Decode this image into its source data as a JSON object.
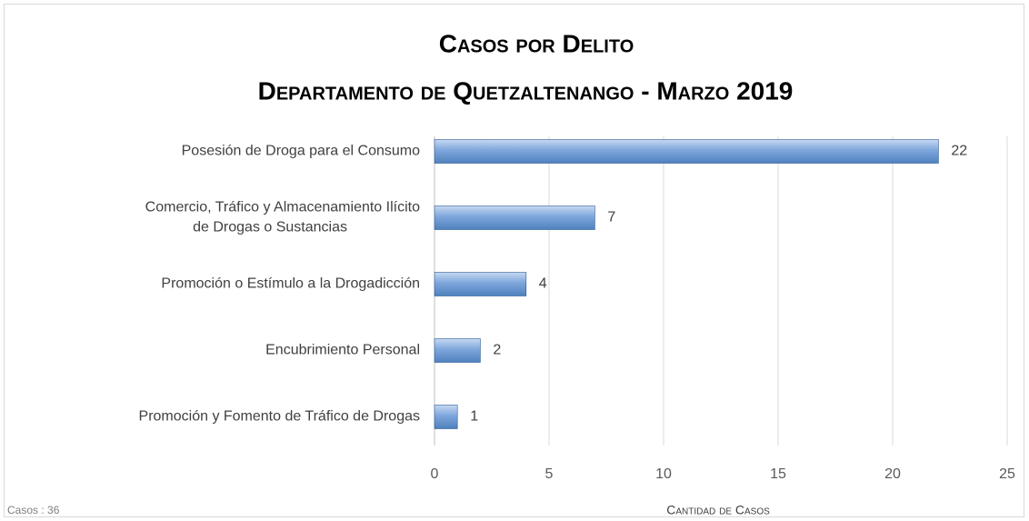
{
  "chart_data": {
    "type": "hbar",
    "title": [
      "Casos por Delito",
      "Departamento de Quetzaltenango - Marzo 2019"
    ],
    "categories": [
      "Posesión de Droga para el Consumo",
      "Comercio, Tráfico y Almacenamiento Ilícito\nde Drogas o Sustancias",
      "Promoción o Estímulo a la Drogadicción",
      "Encubrimiento Personal",
      "Promoción y Fomento de Tráfico de Drogas"
    ],
    "values": [
      22,
      7,
      4,
      2,
      1
    ],
    "color": "#4f81bd",
    "xlim": [
      0,
      25
    ],
    "xticks": [
      0,
      5,
      10,
      15,
      20,
      25
    ],
    "grid": true,
    "xlabel": "Cantidad de Casos",
    "note": "Casos : 36"
  }
}
